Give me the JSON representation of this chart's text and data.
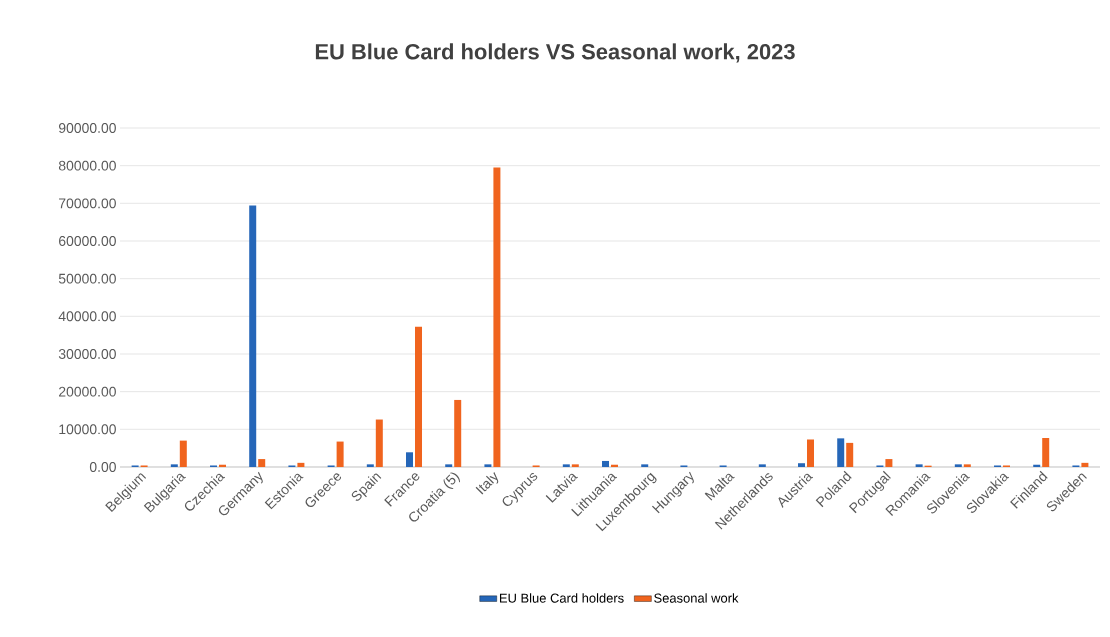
{
  "chart_data": {
    "type": "bar",
    "title": "EU Blue Card holders VS Seasonal work, 2023",
    "categories": [
      "Belgium",
      "Bulgaria",
      "Czechia",
      "Germany",
      "Estonia",
      "Greece",
      "Spain",
      "France",
      "Croatia (5)",
      "Italy",
      "Cyprus",
      "Latvia",
      "Lithuania",
      "Luxembourg",
      "Hungary",
      "Malta",
      "Netherlands",
      "Austria",
      "Poland",
      "Portugal",
      "Romania",
      "Slovenia",
      "Slovakia",
      "Finland",
      "Sweden"
    ],
    "series": [
      {
        "name": "EU Blue Card holders",
        "color": "#2566b8",
        "values": [
          400,
          700,
          400,
          69400,
          400,
          400,
          700,
          3900,
          700,
          700,
          null,
          700,
          1600,
          700,
          400,
          400,
          700,
          1000,
          7600,
          400,
          700,
          700,
          400,
          600,
          400
        ]
      },
      {
        "name": "Seasonal work",
        "color": "#f0641e",
        "values": [
          400,
          7000,
          600,
          2100,
          1100,
          6750,
          12600,
          37200,
          17800,
          79500,
          400,
          700,
          600,
          null,
          null,
          null,
          null,
          7300,
          6400,
          2100,
          350,
          700,
          400,
          7700,
          1100
        ]
      }
    ],
    "ylim": [
      0,
      90000
    ],
    "yticks": [
      {
        "value": 0,
        "label": "0.00"
      },
      {
        "value": 10000,
        "label": "10000.00"
      },
      {
        "value": 20000,
        "label": "20000.00"
      },
      {
        "value": 30000,
        "label": "30000.00"
      },
      {
        "value": 40000,
        "label": "40000.00"
      },
      {
        "value": 50000,
        "label": "50000.00"
      },
      {
        "value": 60000,
        "label": "60000.00"
      },
      {
        "value": 70000,
        "label": "70000.00"
      },
      {
        "value": 80000,
        "label": "80000.00"
      },
      {
        "value": 90000,
        "label": "90000.00"
      }
    ],
    "grid": "y",
    "legend": "bottom"
  }
}
